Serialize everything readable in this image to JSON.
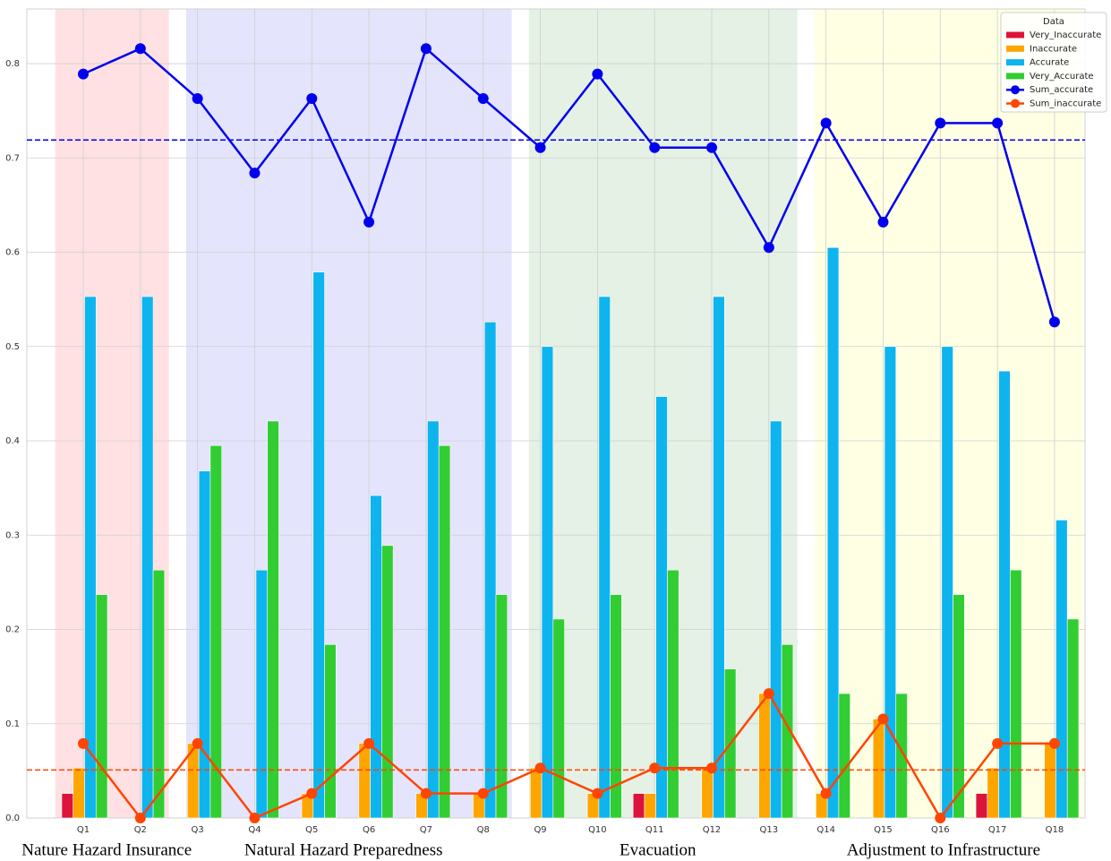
{
  "chart_data": {
    "type": "bar",
    "categories": [
      "Q1",
      "Q2",
      "Q3",
      "Q4",
      "Q5",
      "Q6",
      "Q7",
      "Q8",
      "Q9",
      "Q10",
      "Q11",
      "Q12",
      "Q13",
      "Q14",
      "Q15",
      "Q16",
      "Q17",
      "Q18"
    ],
    "series": [
      {
        "name": "Very_Inaccurate",
        "color": "#dc143c",
        "values": [
          0.026,
          0,
          0,
          0,
          0,
          0,
          0,
          0,
          0,
          0,
          0.026,
          0,
          0,
          0,
          0,
          0,
          0.026,
          0
        ]
      },
      {
        "name": "Inaccurate",
        "color": "#ffa500",
        "values": [
          0.053,
          0,
          0.079,
          0,
          0.026,
          0.079,
          0.026,
          0.026,
          0.053,
          0.026,
          0.026,
          0.053,
          0.132,
          0.026,
          0.105,
          0,
          0.053,
          0.079
        ]
      },
      {
        "name": "Accurate",
        "color": "#0eb4ee",
        "values": [
          0.553,
          0.553,
          0.368,
          0.263,
          0.579,
          0.342,
          0.421,
          0.526,
          0.5,
          0.553,
          0.447,
          0.553,
          0.421,
          0.605,
          0.5,
          0.5,
          0.474,
          0.316
        ]
      },
      {
        "name": "Very_Accurate",
        "color": "#32cd32",
        "values": [
          0.237,
          0.263,
          0.395,
          0.421,
          0.184,
          0.289,
          0.395,
          0.237,
          0.211,
          0.237,
          0.263,
          0.158,
          0.184,
          0.132,
          0.132,
          0.237,
          0.263,
          0.211
        ]
      },
      {
        "name": "Sum_accurate",
        "type": "line",
        "color": "#0000ee",
        "values": [
          0.789,
          0.816,
          0.763,
          0.684,
          0.763,
          0.632,
          0.816,
          0.763,
          0.711,
          0.789,
          0.711,
          0.711,
          0.605,
          0.737,
          0.632,
          0.737,
          0.737,
          0.526
        ]
      },
      {
        "name": "Sum_inaccurate",
        "type": "line",
        "color": "#ff4500",
        "values": [
          0.079,
          0,
          0.079,
          0,
          0.026,
          0.079,
          0.026,
          0.026,
          0.053,
          0.026,
          0.053,
          0.053,
          0.132,
          0.026,
          0.105,
          0,
          0.079,
          0.079
        ]
      }
    ],
    "hlines": [
      {
        "value": 0.719,
        "color": "#0000ee"
      },
      {
        "value": 0.051,
        "color": "#ff4500"
      }
    ],
    "groups": [
      {
        "label": "Nature Hazard Insurance",
        "first": 0,
        "last": 1,
        "color": "#ffe1e3"
      },
      {
        "label": "Natural Hazard Preparedness",
        "first": 2,
        "last": 7,
        "color": "#e4e4fc"
      },
      {
        "label": "Evacuation",
        "first": 8,
        "last": 12,
        "color": "#e5f1e5"
      },
      {
        "label": "Adjustment to Infrastructure",
        "first": 13,
        "last": 17,
        "color": "#ffffe4"
      }
    ],
    "ylim": [
      0,
      0.858
    ],
    "yticks": [
      {
        "value": 0,
        "label": "0.0"
      },
      0.1,
      0.2,
      0.3,
      0.4,
      0.5,
      0.6,
      0.7,
      0.8
    ],
    "grid": true,
    "legend": {
      "title": "Data",
      "position": "upper right"
    }
  }
}
